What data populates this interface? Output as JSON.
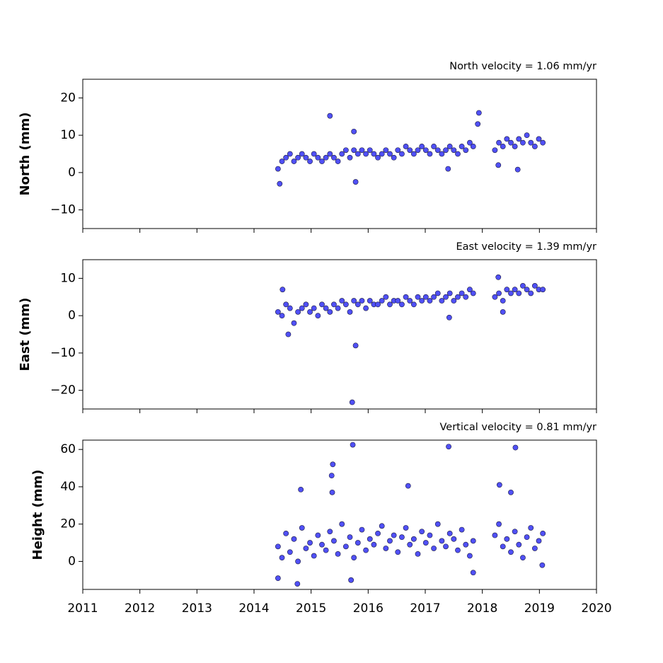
{
  "chart_data": [
    {
      "type": "scatter",
      "title": "North velocity = 1.06 mm/yr",
      "ylabel": "North (mm)",
      "color": "#5050f5",
      "edgecolor": "#1a1a40",
      "x": [
        2014.42,
        2014.49,
        2014.56,
        2014.63,
        2014.7,
        2014.77,
        2014.84,
        2014.91,
        2014.98,
        2015.05,
        2015.12,
        2015.19,
        2015.26,
        2015.33,
        2015.4,
        2015.47,
        2015.54,
        2015.61,
        2015.68,
        2015.75,
        2015.82,
        2015.89,
        2015.96,
        2016.03,
        2016.1,
        2016.17,
        2016.24,
        2016.31,
        2016.38,
        2016.45,
        2016.52,
        2016.59,
        2016.66,
        2016.73,
        2016.8,
        2016.87,
        2016.94,
        2017.01,
        2017.08,
        2017.15,
        2017.22,
        2017.29,
        2017.36,
        2017.43,
        2017.5,
        2017.57,
        2017.64,
        2017.71,
        2017.78,
        2017.84,
        2018.22,
        2018.29,
        2018.36,
        2018.43,
        2018.5,
        2018.57,
        2018.64,
        2018.71,
        2018.78,
        2018.85,
        2018.92,
        2018.99,
        2019.06,
        2014.45,
        2015.33,
        2015.78,
        2015.75,
        2017.94,
        2017.92,
        2018.62,
        2017.4,
        2018.28
      ],
      "values": [
        1,
        3,
        4,
        5,
        3,
        4,
        5,
        4,
        3,
        5,
        4,
        3,
        4,
        5,
        4,
        3,
        5,
        6,
        4,
        6,
        5,
        6,
        5,
        6,
        5,
        4,
        5,
        6,
        5,
        4,
        6,
        5,
        7,
        6,
        5,
        6,
        7,
        6,
        5,
        7,
        6,
        5,
        6,
        7,
        6,
        5,
        7,
        6,
        8,
        7,
        6,
        8,
        7,
        9,
        8,
        7,
        9,
        8,
        10,
        8,
        7,
        9,
        8,
        -3,
        15.2,
        -2.5,
        11,
        16,
        13,
        0.8,
        1,
        2
      ],
      "xlim": [
        2011,
        2020
      ],
      "xticks": [
        2011,
        2012,
        2013,
        2014,
        2015,
        2016,
        2017,
        2018,
        2019,
        2020
      ],
      "ylim": [
        -15,
        25
      ],
      "yticks": [
        {
          "value": -10,
          "label": "−10"
        },
        0,
        10,
        20
      ]
    },
    {
      "type": "scatter",
      "title": "East velocity = 1.39 mm/yr",
      "ylabel": "East (mm)",
      "color": "#5050f5",
      "edgecolor": "#1a1a40",
      "x": [
        2014.42,
        2014.49,
        2014.56,
        2014.63,
        2014.7,
        2014.77,
        2014.84,
        2014.91,
        2014.98,
        2015.05,
        2015.12,
        2015.19,
        2015.26,
        2015.33,
        2015.4,
        2015.47,
        2015.54,
        2015.61,
        2015.68,
        2015.75,
        2015.82,
        2015.89,
        2015.96,
        2016.03,
        2016.1,
        2016.17,
        2016.24,
        2016.31,
        2016.38,
        2016.45,
        2016.52,
        2016.59,
        2016.66,
        2016.73,
        2016.8,
        2016.87,
        2016.94,
        2017.01,
        2017.08,
        2017.15,
        2017.22,
        2017.29,
        2017.36,
        2017.43,
        2017.5,
        2017.57,
        2017.64,
        2017.71,
        2017.78,
        2017.84,
        2018.22,
        2018.29,
        2018.36,
        2018.43,
        2018.5,
        2018.57,
        2018.64,
        2018.71,
        2018.78,
        2018.85,
        2018.92,
        2018.99,
        2019.06,
        2014.6,
        2015.72,
        2015.78,
        2018.28,
        2014.5,
        2017.42,
        2018.36
      ],
      "values": [
        1,
        0,
        3,
        2,
        -2,
        1,
        2,
        3,
        1,
        2,
        0,
        3,
        2,
        1,
        3,
        2,
        4,
        3,
        1,
        4,
        3,
        4,
        2,
        4,
        3,
        3,
        4,
        5,
        3,
        4,
        4,
        3,
        5,
        4,
        3,
        5,
        4,
        5,
        4,
        5,
        6,
        4,
        5,
        6,
        4,
        5,
        6,
        5,
        7,
        6,
        5,
        6,
        4,
        7,
        6,
        7,
        6,
        8,
        7,
        6,
        8,
        7,
        7,
        -5,
        -23.2,
        -8,
        10.3,
        7,
        -0.5,
        1
      ],
      "xlim": [
        2011,
        2020
      ],
      "xticks": [
        2011,
        2012,
        2013,
        2014,
        2015,
        2016,
        2017,
        2018,
        2019,
        2020
      ],
      "ylim": [
        -25,
        15
      ],
      "yticks": [
        {
          "value": -20,
          "label": "−20"
        },
        {
          "value": -10,
          "label": "−10"
        },
        0,
        10
      ]
    },
    {
      "type": "scatter",
      "title": "Vertical velocity = 0.81 mm/yr",
      "ylabel": "Height (mm)",
      "color": "#5050f5",
      "edgecolor": "#1a1a40",
      "x": [
        2014.42,
        2014.49,
        2014.56,
        2014.63,
        2014.7,
        2014.77,
        2014.84,
        2014.91,
        2014.98,
        2015.05,
        2015.12,
        2015.19,
        2015.26,
        2015.33,
        2015.4,
        2015.47,
        2015.54,
        2015.61,
        2015.68,
        2015.75,
        2015.82,
        2015.89,
        2015.96,
        2016.03,
        2016.1,
        2016.17,
        2016.24,
        2016.31,
        2016.38,
        2016.45,
        2016.52,
        2016.59,
        2016.66,
        2016.73,
        2016.8,
        2016.87,
        2016.94,
        2017.01,
        2017.08,
        2017.15,
        2017.22,
        2017.29,
        2017.36,
        2017.43,
        2017.5,
        2017.57,
        2017.64,
        2017.71,
        2017.78,
        2017.84,
        2018.22,
        2018.29,
        2018.36,
        2018.43,
        2018.5,
        2018.57,
        2018.64,
        2018.71,
        2018.78,
        2018.85,
        2018.92,
        2018.99,
        2019.06,
        2014.42,
        2014.76,
        2014.82,
        2015.38,
        2015.36,
        2015.37,
        2015.73,
        2015.7,
        2016.7,
        2017.41,
        2018.3,
        2018.58,
        2018.5,
        2017.84,
        2019.05
      ],
      "values": [
        8,
        2,
        15,
        5,
        12,
        0,
        18,
        7,
        10,
        3,
        14,
        9,
        6,
        16,
        11,
        4,
        20,
        8,
        13,
        2,
        10,
        17,
        6,
        12,
        9,
        15,
        19,
        7,
        11,
        14,
        5,
        13,
        18,
        9,
        12,
        4,
        16,
        10,
        14,
        7,
        20,
        11,
        8,
        15,
        12,
        6,
        17,
        9,
        3,
        11,
        14,
        20,
        8,
        12,
        5,
        16,
        9,
        2,
        13,
        18,
        7,
        11,
        15,
        -9,
        -12,
        38.5,
        52,
        46,
        37,
        62.5,
        -10,
        40.5,
        61.5,
        41,
        61,
        37,
        -6,
        -2
      ],
      "xlim": [
        2011,
        2020
      ],
      "xticks": [
        2011,
        2012,
        2013,
        2014,
        2015,
        2016,
        2017,
        2018,
        2019,
        2020
      ],
      "xticklabels": true,
      "ylim": [
        -15,
        65
      ],
      "yticks": [
        0,
        20,
        40,
        60
      ]
    }
  ]
}
